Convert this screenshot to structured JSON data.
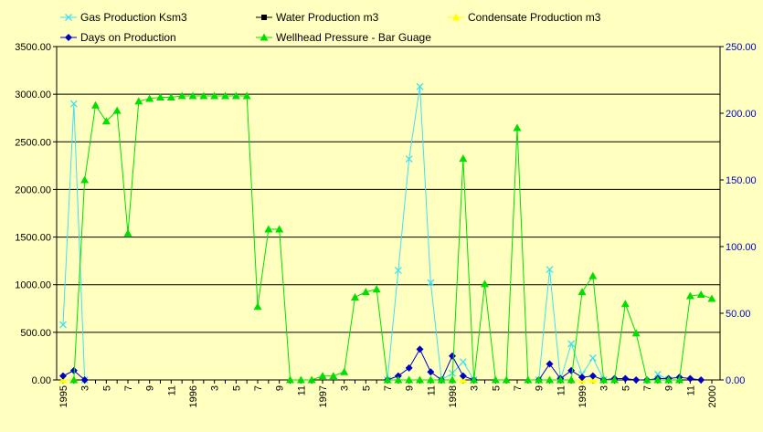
{
  "chart_data": {
    "type": "line",
    "legend": {
      "position": "top",
      "entries": [
        {
          "label": "Gas Production Ksm3",
          "color": "#40e0f0",
          "marker": "x",
          "axis": "left"
        },
        {
          "label": "Water Production m3",
          "color": "#000000",
          "marker": "square",
          "axis": "left"
        },
        {
          "label": "Condensate Production m3",
          "color": "#ffff00",
          "marker": "triangle",
          "axis": "left"
        },
        {
          "label": "Days on Production",
          "color": "#0000c0",
          "marker": "diamond",
          "axis": "right"
        },
        {
          "label": "Wellhead Pressure - Bar Guage",
          "color": "#00e000",
          "marker": "triangle",
          "axis": "right"
        }
      ]
    },
    "left_axis": {
      "range": [
        0,
        3500
      ],
      "ticks": [
        "0.00",
        "500.00",
        "1000.00",
        "1500.00",
        "2000.00",
        "2500.00",
        "3000.00",
        "3500.00"
      ],
      "color": "#000000"
    },
    "right_axis": {
      "range": [
        0,
        250
      ],
      "ticks": [
        "0.00",
        "50.00",
        "100.00",
        "150.00",
        "200.00",
        "250.00"
      ],
      "color": "#0000c0"
    },
    "x_axis": {
      "points": 61,
      "labels": [
        {
          "i": 0,
          "text": "1995"
        },
        {
          "i": 2,
          "text": "3"
        },
        {
          "i": 4,
          "text": "5"
        },
        {
          "i": 6,
          "text": "7"
        },
        {
          "i": 8,
          "text": "9"
        },
        {
          "i": 10,
          "text": "11"
        },
        {
          "i": 12,
          "text": "1996"
        },
        {
          "i": 14,
          "text": "3"
        },
        {
          "i": 16,
          "text": "5"
        },
        {
          "i": 18,
          "text": "7"
        },
        {
          "i": 20,
          "text": "9"
        },
        {
          "i": 22,
          "text": "11"
        },
        {
          "i": 24,
          "text": "1997"
        },
        {
          "i": 26,
          "text": "3"
        },
        {
          "i": 28,
          "text": "5"
        },
        {
          "i": 30,
          "text": "7"
        },
        {
          "i": 32,
          "text": "9"
        },
        {
          "i": 34,
          "text": "11"
        },
        {
          "i": 36,
          "text": "1998"
        },
        {
          "i": 38,
          "text": "3"
        },
        {
          "i": 40,
          "text": "5"
        },
        {
          "i": 42,
          "text": "7"
        },
        {
          "i": 44,
          "text": "9"
        },
        {
          "i": 46,
          "text": "11"
        },
        {
          "i": 48,
          "text": "1999"
        },
        {
          "i": 50,
          "text": "3"
        },
        {
          "i": 52,
          "text": "5"
        },
        {
          "i": 54,
          "text": "7"
        },
        {
          "i": 56,
          "text": "9"
        },
        {
          "i": 58,
          "text": "11"
        },
        {
          "i": 60,
          "text": "2000"
        }
      ]
    },
    "grid": {
      "horizontal": true,
      "vertical": false
    },
    "series": [
      {
        "name": "Gas Production Ksm3",
        "axis": "left",
        "color": "#40e0f0",
        "marker": "x",
        "points": [
          [
            0,
            580
          ],
          [
            1,
            2900
          ],
          [
            2,
            0
          ],
          [
            30,
            0
          ],
          [
            31,
            1150
          ],
          [
            32,
            2320
          ],
          [
            33,
            3080
          ],
          [
            34,
            1020
          ],
          [
            35,
            0
          ],
          [
            36,
            70
          ],
          [
            37,
            190
          ],
          [
            38,
            0
          ],
          [
            44,
            0
          ],
          [
            45,
            1160
          ],
          [
            46,
            0
          ],
          [
            47,
            380
          ],
          [
            48,
            60
          ],
          [
            49,
            230
          ],
          [
            50,
            0
          ],
          [
            55,
            60
          ],
          [
            56,
            0
          ]
        ]
      },
      {
        "name": "Water Production m3",
        "axis": "left",
        "color": "#000000",
        "marker": "square",
        "points": []
      },
      {
        "name": "Condensate Production m3",
        "axis": "left",
        "color": "#ffff00",
        "marker": "triangle",
        "points": [
          [
            0,
            0
          ],
          [
            1,
            0
          ],
          [
            31,
            0
          ],
          [
            32,
            0
          ],
          [
            33,
            0
          ],
          [
            34,
            0
          ],
          [
            35,
            0
          ],
          [
            36,
            0
          ],
          [
            37,
            0
          ],
          [
            44,
            0
          ],
          [
            45,
            0
          ],
          [
            46,
            0
          ],
          [
            47,
            0
          ],
          [
            48,
            0
          ],
          [
            49,
            0
          ],
          [
            50,
            0
          ],
          [
            51,
            0
          ]
        ]
      },
      {
        "name": "Days on Production",
        "axis": "right",
        "color": "#0000c0",
        "marker": "diamond",
        "points": [
          [
            0,
            3
          ],
          [
            1,
            7
          ],
          [
            2,
            0
          ],
          [
            30,
            0
          ],
          [
            31,
            3
          ],
          [
            32,
            9
          ],
          [
            33,
            23
          ],
          [
            34,
            6
          ],
          [
            35,
            0
          ],
          [
            36,
            18
          ],
          [
            37,
            3
          ],
          [
            38,
            0
          ],
          [
            44,
            0
          ],
          [
            45,
            12
          ],
          [
            46,
            1
          ],
          [
            47,
            7
          ],
          [
            48,
            2
          ],
          [
            49,
            3
          ],
          [
            50,
            0
          ],
          [
            51,
            1
          ],
          [
            52,
            1
          ],
          [
            53,
            0
          ],
          [
            54,
            0
          ],
          [
            55,
            1
          ],
          [
            56,
            1
          ],
          [
            57,
            2
          ],
          [
            58,
            1
          ],
          [
            59,
            0
          ]
        ]
      },
      {
        "name": "Wellhead Pressure - Bar Guage",
        "axis": "right",
        "color": "#00e000",
        "marker": "triangle",
        "points": [
          [
            1,
            0
          ],
          [
            2,
            150
          ],
          [
            3,
            206
          ],
          [
            4,
            194
          ],
          [
            5,
            202
          ],
          [
            6,
            110
          ],
          [
            7,
            209
          ],
          [
            8,
            211
          ],
          [
            9,
            212
          ],
          [
            10,
            212
          ],
          [
            11,
            213
          ],
          [
            12,
            213
          ],
          [
            13,
            213
          ],
          [
            14,
            213
          ],
          [
            15,
            213
          ],
          [
            16,
            213
          ],
          [
            17,
            213
          ],
          [
            18,
            55
          ],
          [
            19,
            113
          ],
          [
            20,
            113
          ],
          [
            21,
            0
          ],
          [
            22,
            0
          ],
          [
            23,
            0
          ],
          [
            24,
            3
          ],
          [
            25,
            3
          ],
          [
            26,
            6
          ],
          [
            27,
            62
          ],
          [
            28,
            66
          ],
          [
            29,
            68
          ],
          [
            30,
            0
          ],
          [
            31,
            0
          ],
          [
            32,
            0
          ],
          [
            33,
            0
          ],
          [
            34,
            0
          ],
          [
            35,
            0
          ],
          [
            36,
            0
          ],
          [
            37,
            166
          ],
          [
            38,
            0
          ],
          [
            39,
            72
          ],
          [
            40,
            0
          ],
          [
            41,
            0
          ],
          [
            42,
            189
          ],
          [
            43,
            0
          ],
          [
            44,
            0
          ],
          [
            45,
            0
          ],
          [
            46,
            0
          ],
          [
            47,
            0
          ],
          [
            48,
            66
          ],
          [
            49,
            78
          ],
          [
            50,
            0
          ],
          [
            51,
            0
          ],
          [
            52,
            57
          ],
          [
            53,
            35
          ],
          [
            54,
            0
          ],
          [
            55,
            0
          ],
          [
            56,
            0
          ],
          [
            57,
            0
          ],
          [
            58,
            63
          ],
          [
            59,
            64
          ],
          [
            60,
            61
          ]
        ]
      }
    ]
  }
}
